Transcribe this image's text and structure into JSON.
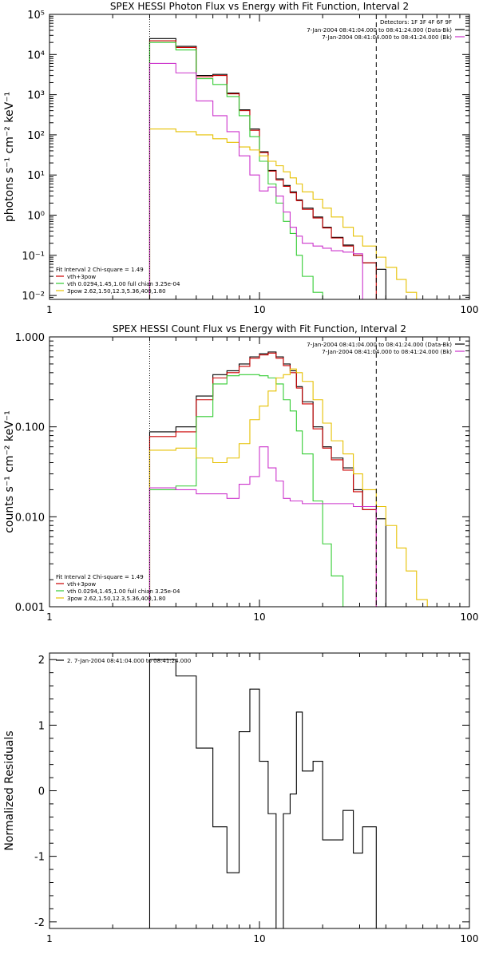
{
  "chart_data": [
    {
      "type": "line",
      "title": "SPEX HESSI Photon Flux vs Energy with Fit Function, Interval 2",
      "ylabel": "photons s⁻¹ cm⁻² keV⁻¹",
      "xlabel": "",
      "xscale": "log",
      "yscale": "log",
      "xlim": [
        1,
        100
      ],
      "ylim": [
        0.008,
        100000
      ],
      "grid": false,
      "x_ticks": [
        {
          "v": 1,
          "label": "1"
        },
        {
          "v": 10,
          "label": "10"
        },
        {
          "v": 100,
          "label": "100"
        }
      ],
      "y_ticks": [
        {
          "v": 0.01,
          "label": "10⁻²"
        },
        {
          "v": 0.1,
          "label": "10⁻¹"
        },
        {
          "v": 1,
          "label": "10⁰"
        },
        {
          "v": 10,
          "label": "10¹"
        },
        {
          "v": 100,
          "label": "10²"
        },
        {
          "v": 1000,
          "label": "10³"
        },
        {
          "v": 10000,
          "label": "10⁴"
        },
        {
          "v": 100000,
          "label": "10⁵"
        }
      ],
      "vlines": [
        {
          "x": 3.0,
          "style": "dotted"
        },
        {
          "x": 36.0,
          "style": "dashed"
        }
      ],
      "bin_edges": [
        3,
        4,
        5,
        6,
        7,
        8,
        9,
        10,
        11,
        12,
        13,
        14,
        15,
        16,
        18,
        20,
        22,
        25,
        28,
        31,
        36,
        40,
        45,
        50,
        56
      ],
      "series": [
        {
          "name": "",
          "color": "#000000",
          "values": [
            25000,
            16000,
            3000,
            3200,
            1100,
            420,
            140,
            38,
            13,
            8,
            5.5,
            3.8,
            2.4,
            1.5,
            0.9,
            0.5,
            0.28,
            0.18,
            0.1,
            0.065,
            0.045
          ]
        },
        {
          "name": "vth+3pow",
          "color": "#cc0000",
          "values": [
            22000,
            15000,
            2800,
            3000,
            1050,
            400,
            130,
            36,
            12.5,
            7.5,
            5.2,
            3.6,
            2.3,
            1.4,
            0.85,
            0.48,
            0.27,
            0.17,
            0.1,
            0.065
          ]
        },
        {
          "name": "vth 0.0294,1.45,1.00  full chian 3.25e-04",
          "color": "#33cc33",
          "values": [
            20000,
            13000,
            2500,
            1800,
            900,
            300,
            90,
            22,
            6,
            2,
            0.7,
            0.35,
            0.1,
            0.03,
            0.012
          ]
        },
        {
          "name": "3pow 2.62,1.50,12.3,5.36,400,1.80",
          "color": "#e6c000",
          "values": [
            140,
            120,
            100,
            80,
            65,
            50,
            42,
            30,
            22,
            17,
            12,
            8.5,
            6,
            3.8,
            2.5,
            1.5,
            0.9,
            0.5,
            0.3,
            0.17,
            0.09,
            0.05,
            0.025,
            0.012
          ]
        },
        {
          "name": "",
          "color": "#cc33cc",
          "values": [
            6000,
            3500,
            700,
            300,
            120,
            30,
            10,
            4,
            5,
            3,
            1.2,
            0.5,
            0.3,
            0.2,
            0.17,
            0.15,
            0.13,
            0.12,
            0.11
          ]
        }
      ],
      "legend": {
        "position": "bottom-left",
        "header": "Fit Interval  2   Chi-square = 1.49",
        "entries": [
          {
            "label": "vth+3pow",
            "color": "#cc0000"
          },
          {
            "label": "vth 0.0294,1.45,1.00  full chian 3.25e-04",
            "color": "#33cc33"
          },
          {
            "label": "3pow 2.62,1.50,12.3,5.36,400,1.80",
            "color": "#e6c000"
          }
        ]
      },
      "info": {
        "position": "top-right",
        "header": "Detectors: 1F 3F 4F 6F 9F",
        "entries": [
          {
            "label": "7-Jan-2004 08:41:04.000 to 08:41:24.000 (Data-Bk)",
            "color": "#000000"
          },
          {
            "label": "7-Jan-2004 08:41:04.000 to 08:41:24.000 (Bk)",
            "color": "#cc33cc"
          }
        ]
      }
    },
    {
      "type": "line",
      "title": "SPEX HESSI Count Flux vs Energy with Fit Function, Interval 2",
      "ylabel": "counts s⁻¹ cm⁻² keV⁻¹",
      "xlabel": "",
      "xscale": "log",
      "yscale": "log",
      "xlim": [
        1,
        100
      ],
      "ylim": [
        0.001,
        1
      ],
      "grid": false,
      "x_ticks": [
        {
          "v": 1,
          "label": "1"
        },
        {
          "v": 10,
          "label": "10"
        },
        {
          "v": 100,
          "label": "100"
        }
      ],
      "y_ticks": [
        {
          "v": 0.001,
          "label": "0.001"
        },
        {
          "v": 0.01,
          "label": "0.010"
        },
        {
          "v": 0.1,
          "label": "0.100"
        },
        {
          "v": 1,
          "label": "1.000"
        }
      ],
      "vlines": [
        {
          "x": 3.0,
          "style": "dotted"
        },
        {
          "x": 36.0,
          "style": "dashed"
        }
      ],
      "bin_edges": [
        3,
        4,
        5,
        6,
        7,
        8,
        9,
        10,
        11,
        12,
        13,
        14,
        15,
        16,
        18,
        20,
        22,
        25,
        28,
        31,
        36,
        40,
        45,
        50,
        56,
        63
      ],
      "series": [
        {
          "name": "",
          "color": "#000000",
          "values": [
            0.088,
            0.1,
            0.22,
            0.38,
            0.42,
            0.5,
            0.6,
            0.65,
            0.68,
            0.6,
            0.5,
            0.42,
            0.28,
            0.19,
            0.1,
            0.06,
            0.045,
            0.035,
            0.02,
            0.012,
            0.0095
          ]
        },
        {
          "name": "vth+3pow",
          "color": "#cc0000",
          "values": [
            0.078,
            0.088,
            0.2,
            0.35,
            0.4,
            0.47,
            0.58,
            0.63,
            0.66,
            0.58,
            0.48,
            0.4,
            0.27,
            0.18,
            0.095,
            0.058,
            0.043,
            0.033,
            0.019,
            0.012
          ]
        },
        {
          "name": "vth 0.0294,1.45,1.00  full chian 3.25e-04",
          "color": "#33cc33",
          "values": [
            0.02,
            0.022,
            0.13,
            0.3,
            0.37,
            0.38,
            0.38,
            0.37,
            0.35,
            0.3,
            0.2,
            0.15,
            0.09,
            0.05,
            0.015,
            0.005,
            0.0022,
            0.001
          ]
        },
        {
          "name": "3pow 2.62,1.50,12.3,5.36,400,1.80",
          "color": "#e6c000",
          "values": [
            0.055,
            0.058,
            0.045,
            0.04,
            0.045,
            0.065,
            0.12,
            0.17,
            0.25,
            0.35,
            0.38,
            0.44,
            0.4,
            0.32,
            0.2,
            0.11,
            0.07,
            0.05,
            0.03,
            0.02,
            0.013,
            0.008,
            0.0045,
            0.0025,
            0.0012
          ]
        },
        {
          "name": "",
          "color": "#cc33cc",
          "values": [
            0.021,
            0.02,
            0.018,
            0.018,
            0.016,
            0.023,
            0.028,
            0.06,
            0.035,
            0.025,
            0.016,
            0.015,
            0.015,
            0.014,
            0.014,
            0.014,
            0.014,
            0.014,
            0.013,
            0.013
          ]
        }
      ],
      "legend": {
        "position": "bottom-left",
        "header": "Fit Interval  2   Chi-square = 1.49",
        "entries": [
          {
            "label": "vth+3pow",
            "color": "#cc0000"
          },
          {
            "label": "vth 0.0294,1.45,1.00  full chian 3.25e-04",
            "color": "#33cc33"
          },
          {
            "label": "3pow 2.62,1.50,12.3,5.36,400,1.80",
            "color": "#e6c000"
          }
        ]
      },
      "info": {
        "position": "top-right",
        "header": "",
        "entries": [
          {
            "label": "7-Jan-2004 08:41:04.000 to 08:41:24.000 (Data-Bk)",
            "color": "#000000"
          },
          {
            "label": "7-Jan-2004 08:41:04.000 to 08:41:24.000 (Bk)",
            "color": "#cc33cc"
          }
        ]
      }
    },
    {
      "type": "line",
      "title": "",
      "ylabel": "Normalized Residuals",
      "xlabel": "",
      "xscale": "log",
      "yscale": "linear",
      "xlim": [
        1,
        100
      ],
      "ylim": [
        -2.1,
        2.1
      ],
      "grid": false,
      "x_ticks": [
        {
          "v": 1,
          "label": "1"
        },
        {
          "v": 10,
          "label": "10"
        },
        {
          "v": 100,
          "label": "100"
        }
      ],
      "y_ticks": [
        {
          "v": -2,
          "label": "-2"
        },
        {
          "v": -1,
          "label": "-1"
        },
        {
          "v": 0,
          "label": "0"
        },
        {
          "v": 1,
          "label": "1"
        },
        {
          "v": 2,
          "label": "2"
        }
      ],
      "vlines": [],
      "bin_edges": [
        3,
        4,
        5,
        6,
        7,
        8,
        9,
        10,
        11,
        12,
        13,
        14,
        15,
        16,
        18,
        20,
        22,
        25,
        28,
        31,
        36
      ],
      "drop_from": -2.1,
      "series": [
        {
          "name": "",
          "color": "#000000",
          "values": [
            2.0,
            1.75,
            0.65,
            -0.55,
            -1.25,
            0.9,
            1.55,
            0.45,
            -0.35,
            -2.1,
            -0.35,
            -0.05,
            1.2,
            0.3,
            0.45,
            -0.75,
            -0.75,
            -0.3,
            -0.95,
            -0.55
          ]
        }
      ],
      "legend": {
        "position": "top-left",
        "header": "",
        "entries": []
      },
      "info": {
        "position": "top-left",
        "header": "",
        "entries": [
          {
            "label": "2.  7-Jan-2004 08:41:04.000 to 08:41:24.000",
            "color": "#000000"
          }
        ]
      }
    }
  ]
}
